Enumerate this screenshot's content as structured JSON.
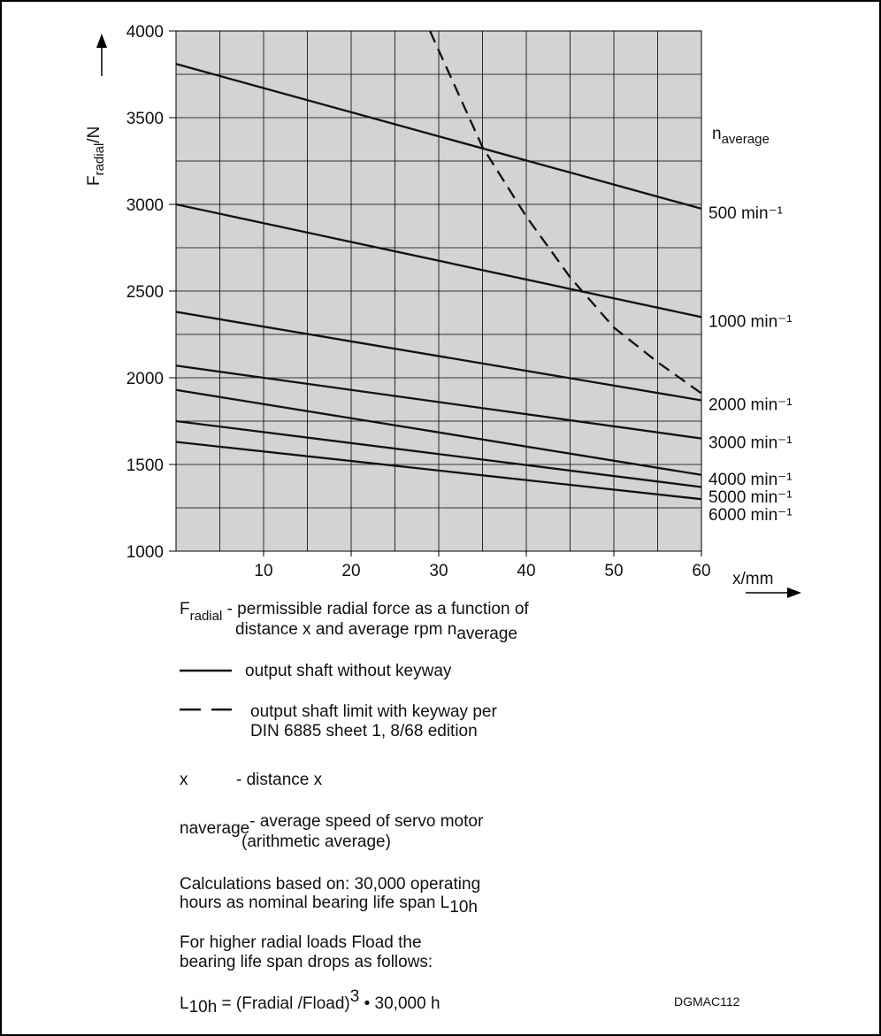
{
  "chart_data": {
    "type": "line",
    "y_label": {
      "main": "F",
      "sub": "radial",
      "rest": "/N"
    },
    "x_label": "x/mm",
    "series_heading": {
      "main": "n",
      "sub": "average"
    },
    "xlim": [
      0,
      60
    ],
    "ylim": [
      1000,
      4000
    ],
    "xticks": [
      10,
      20,
      30,
      40,
      50,
      60
    ],
    "yticks": [
      1000,
      1500,
      2000,
      2500,
      3000,
      3500,
      4000
    ],
    "x_grid": [
      5,
      10,
      15,
      20,
      25,
      30,
      35,
      40,
      45,
      50,
      55
    ],
    "y_grid": [
      1250,
      1500,
      1750,
      2000,
      2250,
      2500,
      2750,
      3000,
      3250,
      3500,
      3750
    ],
    "grid": true,
    "plot_background": "#d1d3d4",
    "series": [
      {
        "name": "500 min⁻¹",
        "color": "#111111",
        "style": "solid",
        "x": [
          0,
          60
        ],
        "values": [
          3810,
          2975
        ]
      },
      {
        "name": "1000 min⁻¹",
        "color": "#111111",
        "style": "solid",
        "x": [
          0,
          60
        ],
        "values": [
          3000,
          2350
        ]
      },
      {
        "name": "2000 min⁻¹",
        "color": "#111111",
        "style": "solid",
        "x": [
          0,
          60
        ],
        "values": [
          2380,
          1870
        ]
      },
      {
        "name": "3000 min⁻¹",
        "color": "#111111",
        "style": "solid",
        "x": [
          0,
          60
        ],
        "values": [
          2070,
          1650
        ]
      },
      {
        "name": "4000 min⁻¹",
        "color": "#111111",
        "style": "solid",
        "x": [
          0,
          60
        ],
        "values": [
          1930,
          1440
        ]
      },
      {
        "name": "5000 min⁻¹",
        "color": "#111111",
        "style": "solid",
        "x": [
          0,
          60
        ],
        "values": [
          1750,
          1370
        ]
      },
      {
        "name": "6000 min⁻¹",
        "color": "#111111",
        "style": "solid",
        "x": [
          0,
          60
        ],
        "values": [
          1630,
          1300
        ]
      },
      {
        "color": "#111111",
        "style": "dashed",
        "x": [
          29,
          35,
          40,
          45,
          50,
          55,
          60
        ],
        "values": [
          4000,
          3330,
          2930,
          2580,
          2290,
          2090,
          1910
        ]
      }
    ]
  },
  "notes": {
    "f_radial": {
      "main": "F",
      "sub": "radial",
      "text": " - permissible radial force as a function of",
      "text2": "distance x and average rpm n",
      "sub2": "average"
    },
    "legend_solid": "output shaft without keyway",
    "legend_dashed": [
      "output shaft limit with keyway per",
      "DIN 6885 sheet 1,  8/68 edition"
    ],
    "x_symbol": "x",
    "x_text": "- distance x",
    "n_avg": {
      "main": "n",
      "sub": "average",
      "text": "- average speed of servo motor",
      "text2": "(arithmetic average)"
    },
    "calc": {
      "line1": "Calculations based on: 30,000 operating",
      "line2": "hours as nominal bearing life span L",
      "sub": "10h"
    },
    "higher": [
      "For higher radial loads Fload the",
      "bearing life span drops as follows:"
    ],
    "formula": {
      "main": "L",
      "sub": "10h",
      "text": " = (Fradial /Fload)",
      "sup": "3",
      "text2": " • 30,000 h"
    },
    "code": "DGMAC112"
  }
}
